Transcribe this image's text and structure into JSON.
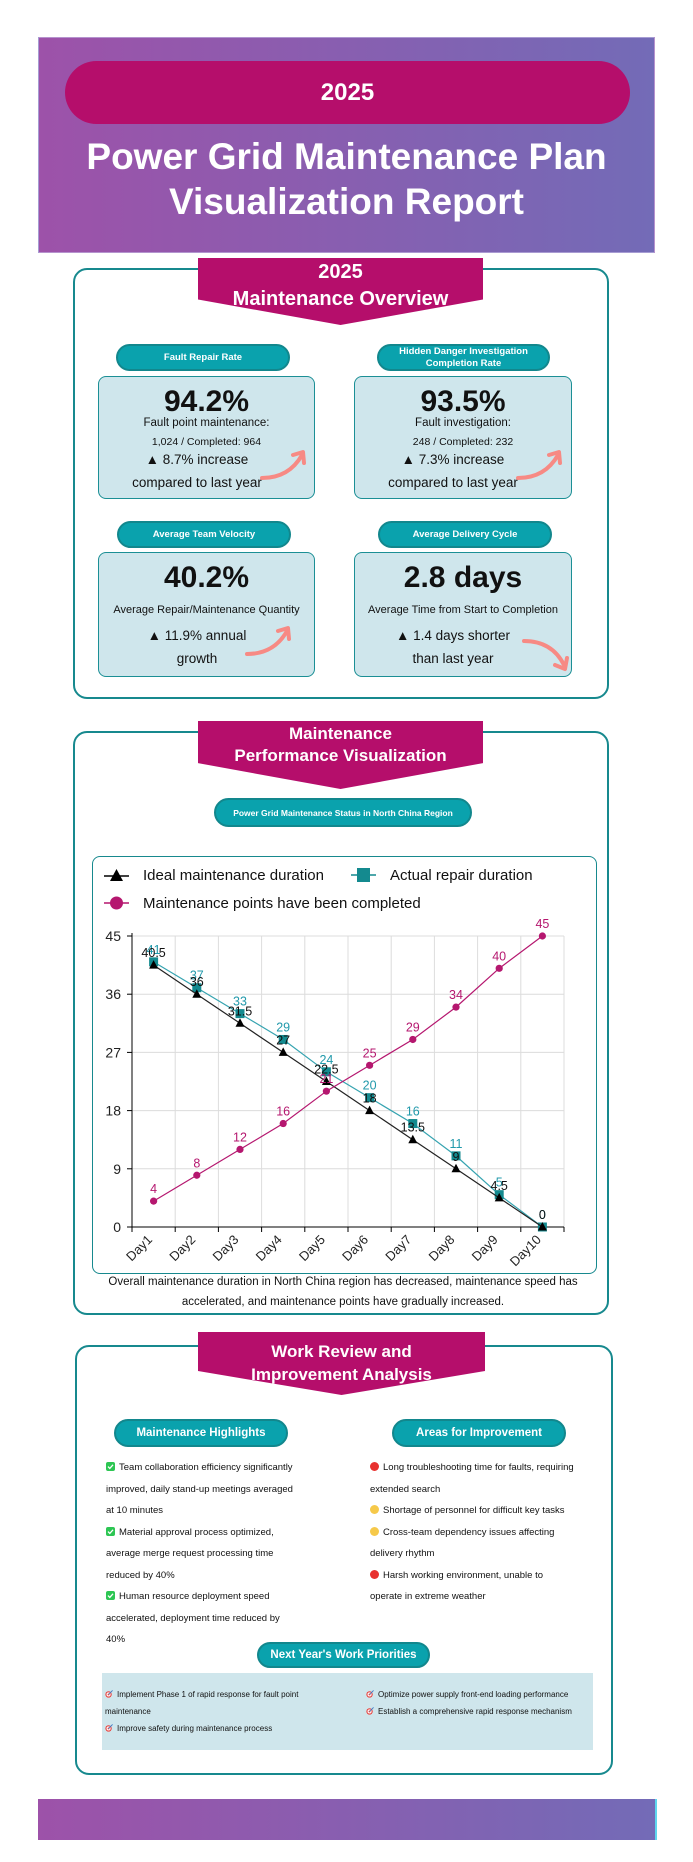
{
  "header": {
    "year": "2025",
    "title": [
      "Power Grid Maintenance Plan",
      "Visualization Report"
    ]
  },
  "overview": {
    "ribbon": [
      "2025",
      "Maintenance Overview"
    ],
    "cards": [
      {
        "label": "Fault Repair Rate",
        "value": "94.2%",
        "subtitle": "Fault point maintenance:",
        "detail": "1,024 / Completed: 964",
        "trend": [
          "▲ 8.7% increase",
          "compared to last year"
        ],
        "trend_direction": "up"
      },
      {
        "label": "Hidden Danger Investigation Completion Rate",
        "value": "93.5%",
        "subtitle": "Fault investigation:",
        "detail": "248 / Completed: 232",
        "trend": [
          "▲ 7.3% increase",
          "compared to last year"
        ],
        "trend_direction": "up"
      },
      {
        "label": "Average Team Velocity",
        "value": "40.2%",
        "subtitle": "Average Repair/Maintenance Quantity",
        "trend": [
          "▲ 11.9% annual",
          "growth"
        ],
        "trend_direction": "up"
      },
      {
        "label": "Average Delivery Cycle",
        "value": "2.8 days",
        "subtitle": "Average Time from Start to Completion",
        "trend": [
          "▲ 1.4 days shorter",
          "than last year"
        ],
        "trend_direction": "down"
      }
    ]
  },
  "performance": {
    "ribbon": [
      "Maintenance",
      "Performance Visualization"
    ],
    "chart_title": "Power Grid Maintenance Status in North China Region",
    "caption": "Overall maintenance duration in North China region has decreased, maintenance speed has accelerated, and maintenance points have gradually increased."
  },
  "chart_data": {
    "type": "line",
    "title": "Power Grid Maintenance Status in North China Region",
    "xlabel": "",
    "ylabel": "",
    "categories": [
      "Day1",
      "Day2",
      "Day3",
      "Day4",
      "Day5",
      "Day6",
      "Day7",
      "Day8",
      "Day9",
      "Day10"
    ],
    "series": [
      {
        "name": "Ideal maintenance duration",
        "values": [
          40.5,
          36,
          31.5,
          27,
          22.5,
          18,
          13.5,
          9,
          4.5,
          0
        ],
        "marker": "triangle",
        "line_color": "#222222",
        "marker_color": "#000000",
        "label_color": "#111111"
      },
      {
        "name": "Actual repair duration",
        "values": [
          41,
          37,
          33,
          29,
          24,
          20,
          16,
          11,
          5,
          0
        ],
        "marker": "square",
        "line_color": "#35a3b0",
        "marker_color": "#148a8f",
        "label_color": "#2199ab"
      },
      {
        "name": "Maintenance points have been completed",
        "values": [
          4,
          8,
          12,
          16,
          21,
          25,
          29,
          34,
          40,
          45
        ],
        "marker": "circle",
        "line_color": "#b5176f",
        "marker_color": "#b5176f",
        "label_color": "#b5176f"
      }
    ],
    "yticks": [
      0,
      9,
      18,
      27,
      36,
      45
    ],
    "ylim": [
      0,
      45
    ],
    "grid": true,
    "legend_position": "top-left",
    "data_labels": true
  },
  "review": {
    "ribbon": [
      "Work Review and",
      "Improvement Analysis"
    ],
    "highlights": {
      "title": "Maintenance Highlights",
      "items": [
        {
          "icon": "check-box-icon",
          "text": "Team collaboration efficiency significantly improved, daily stand-up meetings averaged at 10 minutes"
        },
        {
          "icon": "check-box-icon",
          "text": "Material approval process optimized, average merge request processing time reduced by 40%"
        },
        {
          "icon": "check-box-icon",
          "text": "Human resource deployment speed accelerated, deployment time reduced by 40%"
        }
      ]
    },
    "improvements": {
      "title": "Areas for Improvement",
      "items": [
        {
          "icon": "red-circle-icon",
          "color": "#e8312f",
          "text": "Long troubleshooting time for faults, requiring extended search"
        },
        {
          "icon": "yellow-circle-icon",
          "color": "#f6c94a",
          "text": "Shortage of personnel for difficult key tasks"
        },
        {
          "icon": "yellow-circle-icon",
          "color": "#f6c94a",
          "text": "Cross-team dependency issues affecting delivery rhythm"
        },
        {
          "icon": "red-circle-icon",
          "color": "#e8312f",
          "text": "Harsh working environment, unable to operate in extreme weather"
        }
      ]
    },
    "priorities": {
      "title": "Next Year's Work Priorities",
      "items": [
        {
          "icon": "target-icon",
          "text": "Implement Phase 1 of rapid response for fault point maintenance"
        },
        {
          "icon": "target-icon",
          "text": "Improve safety during maintenance process"
        },
        {
          "icon": "target-icon",
          "text": "Optimize power supply front-end loading performance"
        },
        {
          "icon": "target-icon",
          "text": "Establish a comprehensive rapid response mechanism"
        }
      ]
    }
  },
  "colors": {
    "magenta": "#b50e6b",
    "teal": "#0aa2ad",
    "teal_border": "#17898e",
    "card_bg": "#cfe6ec",
    "gradient_start": "#9d52a9",
    "gradient_end": "#736bb7",
    "trend_arrow": "#f78a84"
  }
}
